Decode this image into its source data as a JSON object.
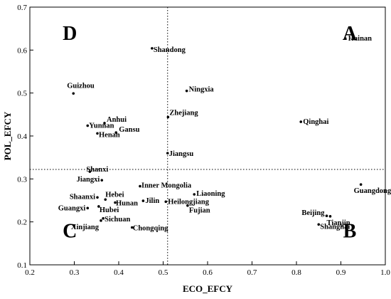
{
  "chart_data": {
    "type": "scatter",
    "xlabel": "ECO_EFCY",
    "ylabel": "POL_EFCY",
    "xlim": [
      0.2,
      1.0
    ],
    "ylim": [
      0.1,
      0.7
    ],
    "xticks": [
      "0.2",
      "0.3",
      "0.4",
      "0.5",
      "0.6",
      "0.7",
      "0.8",
      "0.9",
      "1.0"
    ],
    "yticks": [
      "0.1",
      "0.2",
      "0.3",
      "0.4",
      "0.5",
      "0.6",
      "0.7"
    ],
    "grid": false,
    "reference_lines": {
      "x": 0.51,
      "y": 0.322,
      "style": "dotted"
    },
    "quadrants": [
      {
        "label": "A",
        "x": 0.92,
        "y": 0.64
      },
      {
        "label": "B",
        "x": 0.92,
        "y": 0.18
      },
      {
        "label": "C",
        "x": 0.29,
        "y": 0.18
      },
      {
        "label": "D",
        "x": 0.29,
        "y": 0.64
      }
    ],
    "points": [
      {
        "name": "Hainan",
        "x": 0.91,
        "y": 0.627,
        "anchor": "start",
        "dx": 4,
        "dy": 3
      },
      {
        "name": "Shandong",
        "x": 0.475,
        "y": 0.604,
        "anchor": "start",
        "dx": 2,
        "dy": 5
      },
      {
        "name": "Guizhou",
        "x": 0.298,
        "y": 0.499,
        "anchor": "start",
        "dx": -9,
        "dy": -8
      },
      {
        "name": "Ningxia",
        "x": 0.553,
        "y": 0.505,
        "anchor": "start",
        "dx": 3,
        "dy": 1
      },
      {
        "name": "Zhejiang",
        "x": 0.511,
        "y": 0.444,
        "anchor": "start",
        "dx": 2,
        "dy": -3
      },
      {
        "name": "Qinghai",
        "x": 0.81,
        "y": 0.433,
        "anchor": "start",
        "dx": 3,
        "dy": 3
      },
      {
        "name": "Anhui",
        "x": 0.368,
        "y": 0.43,
        "anchor": "start",
        "dx": 3,
        "dy": -2
      },
      {
        "name": "Yunnan",
        "x": 0.33,
        "y": 0.424,
        "anchor": "start",
        "dx": 2,
        "dy": 3
      },
      {
        "name": "Gansu",
        "x": 0.394,
        "y": 0.408,
        "anchor": "start",
        "dx": 4,
        "dy": -1
      },
      {
        "name": "Henan",
        "x": 0.352,
        "y": 0.406,
        "anchor": "start",
        "dx": 2,
        "dy": 5
      },
      {
        "name": "Jiangsu",
        "x": 0.51,
        "y": 0.36,
        "anchor": "start",
        "dx": 2,
        "dy": 4
      },
      {
        "name": "Shanxi",
        "x": 0.335,
        "y": 0.317,
        "anchor": "start",
        "dx": -5,
        "dy": 0
      },
      {
        "name": "Jiangxi",
        "x": 0.362,
        "y": 0.297,
        "anchor": "end",
        "dx": -3,
        "dy": 2
      },
      {
        "name": "Inner Mongolia",
        "x": 0.448,
        "y": 0.283,
        "anchor": "start",
        "dx": 2,
        "dy": 2
      },
      {
        "name": "Guangdong",
        "x": 0.945,
        "y": 0.287,
        "anchor": "start",
        "dx": -10,
        "dy": 12
      },
      {
        "name": "Liaoning",
        "x": 0.57,
        "y": 0.264,
        "anchor": "start",
        "dx": 3,
        "dy": 2
      },
      {
        "name": "Shaanxi",
        "x": 0.352,
        "y": 0.257,
        "anchor": "end",
        "dx": -3,
        "dy": 2
      },
      {
        "name": "Hebei",
        "x": 0.37,
        "y": 0.252,
        "anchor": "start",
        "dx": 0,
        "dy": -4
      },
      {
        "name": "Jilin",
        "x": 0.455,
        "y": 0.249,
        "anchor": "start",
        "dx": 3,
        "dy": 3
      },
      {
        "name": "Heilongjiang",
        "x": 0.506,
        "y": 0.247,
        "anchor": "start",
        "dx": 3,
        "dy": 3
      },
      {
        "name": "Hunan",
        "x": 0.392,
        "y": 0.245,
        "anchor": "start",
        "dx": 1,
        "dy": 4
      },
      {
        "name": "Fujian",
        "x": 0.555,
        "y": 0.238,
        "anchor": "start",
        "dx": 2,
        "dy": 10
      },
      {
        "name": "Hubei",
        "x": 0.355,
        "y": 0.236,
        "anchor": "start",
        "dx": 1,
        "dy": 8
      },
      {
        "name": "Guangxi",
        "x": 0.33,
        "y": 0.232,
        "anchor": "end",
        "dx": -3,
        "dy": 3
      },
      {
        "name": "Beijing",
        "x": 0.868,
        "y": 0.214,
        "anchor": "end",
        "dx": -3,
        "dy": -1
      },
      {
        "name": "Tianjin",
        "x": 0.876,
        "y": 0.213,
        "anchor": "start",
        "dx": -5,
        "dy": 12
      },
      {
        "name": "Sichuan",
        "x": 0.365,
        "y": 0.208,
        "anchor": "start",
        "dx": 2,
        "dy": 4
      },
      {
        "name": "Xinjiang",
        "x": 0.36,
        "y": 0.203,
        "anchor": "end",
        "dx": -3,
        "dy": 12
      },
      {
        "name": "Shanghai",
        "x": 0.85,
        "y": 0.194,
        "anchor": "start",
        "dx": 2,
        "dy": 6
      },
      {
        "name": "Chongqing",
        "x": 0.43,
        "y": 0.187,
        "anchor": "start",
        "dx": 1,
        "dy": 4
      }
    ]
  }
}
